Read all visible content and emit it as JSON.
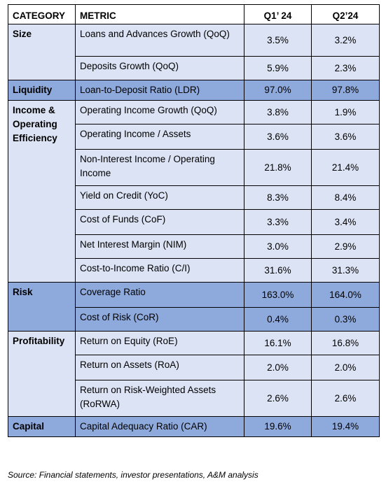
{
  "header": {
    "category": "CATEGORY",
    "metric": "METRIC",
    "q1": "Q1’ 24",
    "q2": "Q2’24"
  },
  "groups": [
    {
      "category": "Size",
      "style": "light",
      "rows": [
        {
          "metric": "Loans and Advances Growth (QoQ)",
          "q1": "3.5%",
          "q2": "3.2%"
        },
        {
          "metric": "Deposits Growth (QoQ)",
          "q1": "5.9%",
          "q2": "2.3%"
        }
      ]
    },
    {
      "category": "Liquidity",
      "style": "dark",
      "rows": [
        {
          "metric": "Loan-to-Deposit Ratio (LDR)",
          "q1": "97.0%",
          "q2": "97.8%"
        }
      ]
    },
    {
      "category": "Income & Operating Efficiency",
      "style": "light",
      "rows": [
        {
          "metric": "Operating Income Growth (QoQ)",
          "q1": "3.8%",
          "q2": "1.9%"
        },
        {
          "metric": "Operating Income / Assets",
          "q1": "3.6%",
          "q2": "3.6%"
        },
        {
          "metric": "Non-Interest Income / Operating Income",
          "q1": "21.8%",
          "q2": "21.4%"
        },
        {
          "metric": "Yield on Credit (YoC)",
          "q1": "8.3%",
          "q2": "8.4%"
        },
        {
          "metric": "Cost of Funds (CoF)",
          "q1": "3.3%",
          "q2": "3.4%"
        },
        {
          "metric": "Net Interest Margin (NIM)",
          "q1": "3.0%",
          "q2": "2.9%"
        },
        {
          "metric": "Cost-to-Income Ratio (C/I)",
          "q1": "31.6%",
          "q2": "31.3%"
        }
      ]
    },
    {
      "category": "Risk",
      "style": "dark",
      "rows": [
        {
          "metric": "Coverage Ratio",
          "q1": "163.0%",
          "q2": "164.0%"
        },
        {
          "metric": "Cost of Risk (CoR)",
          "q1": "0.4%",
          "q2": "0.3%"
        }
      ]
    },
    {
      "category": "Profitability",
      "style": "light",
      "rows": [
        {
          "metric": "Return on Equity (RoE)",
          "q1": "16.1%",
          "q2": "16.8%"
        },
        {
          "metric": "Return on Assets (RoA)",
          "q1": "2.0%",
          "q2": "2.0%"
        },
        {
          "metric": "Return on Risk-Weighted Assets (RoRWA)",
          "q1": "2.6%",
          "q2": "2.6%"
        }
      ]
    },
    {
      "category": "Capital",
      "style": "dark",
      "rows": [
        {
          "metric": "Capital Adequacy Ratio (CAR)",
          "q1": "19.6%",
          "q2": "19.4%"
        }
      ]
    }
  ],
  "source": "Source: Financial statements, investor presentations, A&M analysis"
}
